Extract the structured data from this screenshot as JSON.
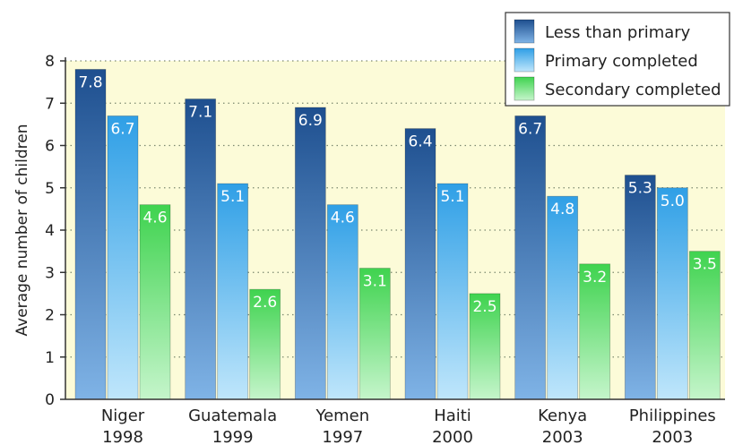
{
  "chart_data": {
    "type": "bar",
    "ylabel": "Average number of children",
    "ylim": [
      0,
      8
    ],
    "yticks": [
      "0",
      "1",
      "2",
      "3",
      "4",
      "5",
      "6",
      "7",
      "8"
    ],
    "categories": [
      {
        "name": "Niger",
        "year": "1998"
      },
      {
        "name": "Guatemala",
        "year": "1999"
      },
      {
        "name": "Yemen",
        "year": "1997"
      },
      {
        "name": "Haiti",
        "year": "2000"
      },
      {
        "name": "Kenya",
        "year": "2003"
      },
      {
        "name": "Philippines",
        "year": "2003"
      }
    ],
    "series": [
      {
        "name": "Less than primary",
        "values": [
          7.8,
          7.1,
          6.9,
          6.4,
          6.7,
          5.3
        ],
        "labels": [
          "7.8",
          "7.1",
          "6.9",
          "6.4",
          "6.7",
          "5.3"
        ],
        "color_top": "#1e4f8f",
        "color_bottom": "#7fb3e6"
      },
      {
        "name": "Primary completed",
        "values": [
          6.7,
          5.1,
          4.6,
          5.1,
          4.8,
          5.0
        ],
        "labels": [
          "6.7",
          "5.1",
          "4.6",
          "5.1",
          "4.8",
          "5.0"
        ],
        "color_top": "#2f9fe6",
        "color_bottom": "#bfe6fb"
      },
      {
        "name": "Secondary completed",
        "values": [
          4.6,
          2.6,
          3.1,
          2.5,
          3.2,
          3.5
        ],
        "labels": [
          "4.6",
          "2.6",
          "3.1",
          "2.5",
          "3.2",
          "3.5"
        ],
        "color_top": "#3fd34f",
        "color_bottom": "#c5f5cb"
      }
    ],
    "grid": "horizontal dotted",
    "legend_position": "top-right",
    "background": "#fcfbd8"
  }
}
